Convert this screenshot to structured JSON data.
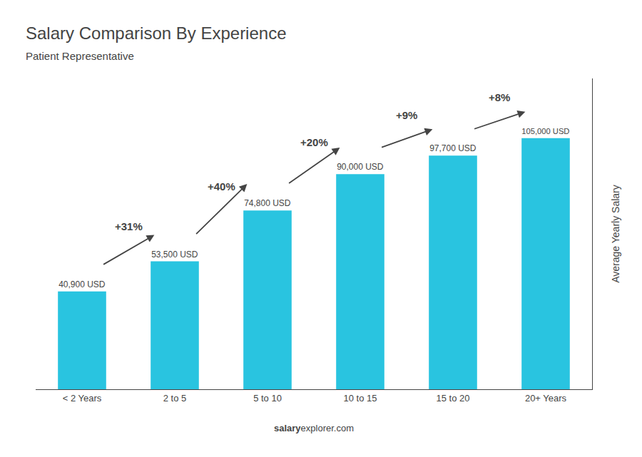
{
  "chart_data": {
    "type": "bar",
    "title": "Salary Comparison By Experience",
    "subtitle": "Patient Representative",
    "categories": [
      "< 2 Years",
      "2 to 5",
      "5 to 10",
      "10 to 15",
      "15 to 20",
      "20+ Years"
    ],
    "values": [
      40900,
      53500,
      74800,
      90000,
      97700,
      105000
    ],
    "value_labels": [
      "40,900 USD",
      "53,500 USD",
      "74,800 USD",
      "90,000 USD",
      "97,700 USD",
      "105,000 USD"
    ],
    "data_labels": true,
    "color": "#29c4e0",
    "ylabel": "Average Yearly Salary",
    "ylim": [
      0,
      130000
    ],
    "yticks": [],
    "tick_labels": "x",
    "grid": false,
    "annotations": [
      "+31%",
      "+40%",
      "+20%",
      "+9%",
      "+8%"
    ],
    "footer": [
      "salary",
      "explorer.com"
    ]
  }
}
